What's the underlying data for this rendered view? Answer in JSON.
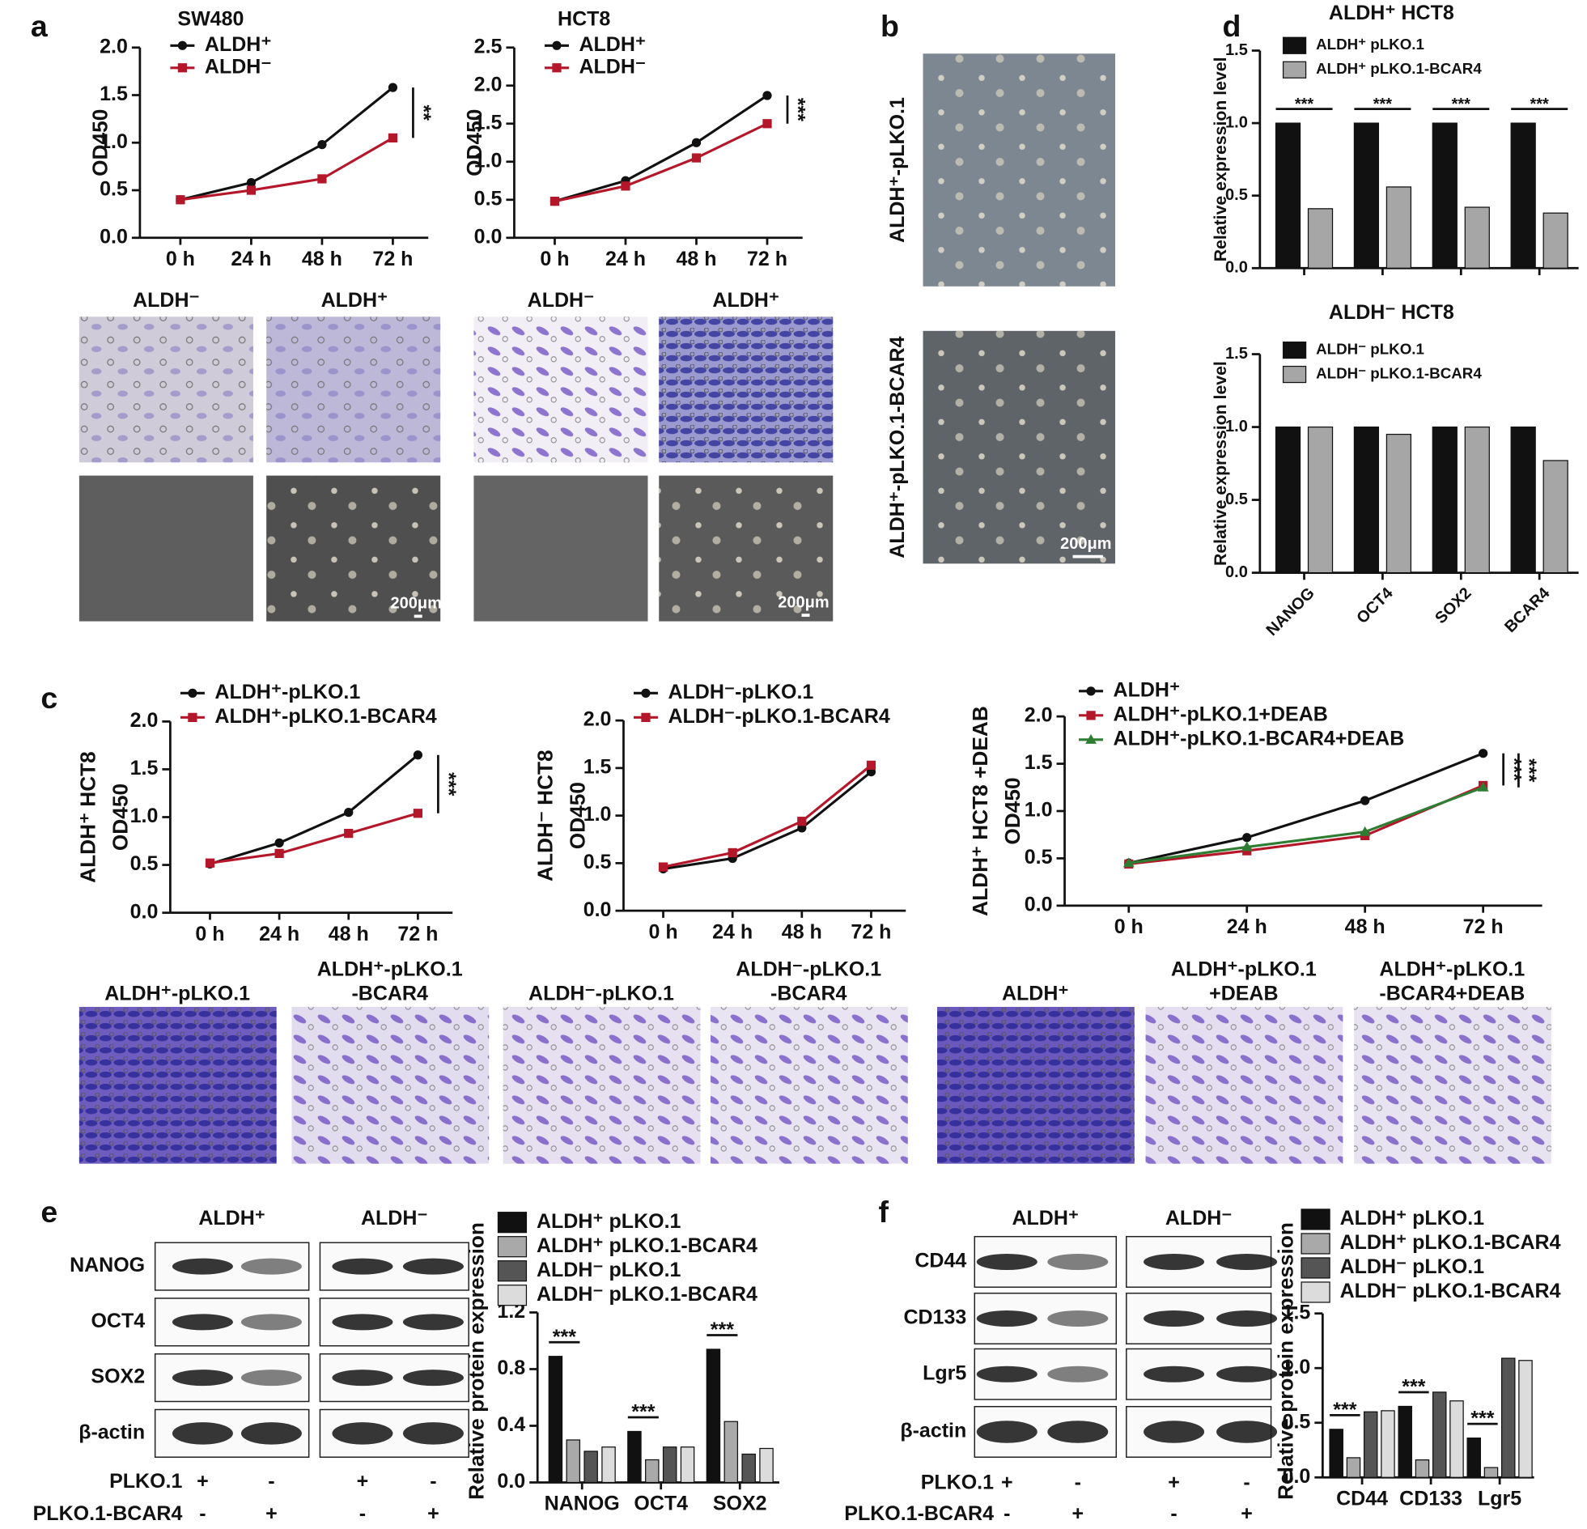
{
  "panel_labels": [
    "a",
    "b",
    "c",
    "d",
    "e",
    "f"
  ],
  "chart_data": [
    {
      "type": "line",
      "title": "SW480",
      "ylabel": "OD450",
      "categories": [
        "0 h",
        "24 h",
        "48 h",
        "72 h"
      ],
      "ylim": [
        0,
        2.0
      ],
      "yticks": [
        {
          "value": 0,
          "label": "0.0"
        },
        0.5,
        {
          "value": 1,
          "label": "1.0"
        },
        1.5,
        {
          "value": 2,
          "label": "2.0"
        }
      ],
      "series": [
        {
          "name": "ALDH⁺",
          "color": "#111111",
          "values": [
            0.4,
            0.58,
            0.98,
            1.58
          ]
        },
        {
          "name": "ALDH⁻",
          "color": "#b5172a",
          "values": [
            0.4,
            0.5,
            0.62,
            1.05
          ]
        }
      ],
      "annotations": [
        "**"
      ]
    },
    {
      "type": "line",
      "title": "HCT8",
      "ylabel": "OD450",
      "categories": [
        "0 h",
        "24 h",
        "48 h",
        "72 h"
      ],
      "ylim": [
        0,
        2.5
      ],
      "yticks": [
        {
          "value": 0,
          "label": "0.0"
        },
        0.5,
        {
          "value": 1,
          "label": "1.0"
        },
        1.5,
        {
          "value": 2,
          "label": "2.0"
        },
        2.5
      ],
      "series": [
        {
          "name": "ALDH⁺",
          "color": "#111111",
          "values": [
            0.48,
            0.75,
            1.25,
            1.87
          ]
        },
        {
          "name": "ALDH⁻",
          "color": "#b5172a",
          "values": [
            0.48,
            0.68,
            1.05,
            1.5
          ]
        }
      ],
      "annotations": [
        "***"
      ]
    },
    {
      "type": "bar",
      "title": "ALDH⁺ HCT8",
      "ylabel": "Relative expression level",
      "categories": [
        null,
        null,
        null,
        null
      ],
      "ylim": [
        0,
        1.5
      ],
      "yticks": [
        {
          "value": 0,
          "label": "0.0"
        },
        0.5,
        {
          "value": 1,
          "label": "1.0"
        },
        1.5
      ],
      "series": [
        {
          "name": "ALDH⁺ pLKO.1",
          "color": "#111111",
          "values": [
            1.0,
            1.0,
            1.0,
            1.0
          ]
        },
        {
          "name": "ALDH⁺ pLKO.1-BCAR4",
          "color": "#a6a6a6",
          "values": [
            0.41,
            0.56,
            0.42,
            0.38
          ]
        }
      ],
      "annotations": [
        "***",
        "***",
        "***",
        "***"
      ]
    },
    {
      "type": "bar",
      "title": "ALDH⁻ HCT8",
      "ylabel": "Relative expression level",
      "categories": [
        "NANOG",
        "OCT4",
        "SOX2",
        "BCAR4"
      ],
      "ylim": [
        0,
        1.5
      ],
      "yticks": [
        {
          "value": 0,
          "label": "0.0"
        },
        0.5,
        {
          "value": 1,
          "label": "1.0"
        },
        1.5
      ],
      "series": [
        {
          "name": "ALDH⁻ pLKO.1",
          "color": "#111111",
          "values": [
            1.0,
            1.0,
            1.0,
            1.0
          ]
        },
        {
          "name": "ALDH⁻ pLKO.1-BCAR4",
          "color": "#a6a6a6",
          "values": [
            1.0,
            0.95,
            1.0,
            0.77
          ]
        }
      ]
    },
    {
      "type": "line",
      "ylabel": [
        "ALDH⁺ HCT8",
        "OD450"
      ],
      "categories": [
        "0 h",
        "24 h",
        "48 h",
        "72 h"
      ],
      "ylim": [
        0,
        2.0
      ],
      "yticks": [
        {
          "value": 0,
          "label": "0.0"
        },
        0.5,
        {
          "value": 1,
          "label": "1.0"
        },
        1.5,
        {
          "value": 2,
          "label": "2.0"
        }
      ],
      "series": [
        {
          "name": "ALDH⁺-pLKO.1",
          "color": "#111111",
          "values": [
            0.51,
            0.73,
            1.05,
            1.65
          ]
        },
        {
          "name": "ALDH⁺-pLKO.1-BCAR4",
          "color": "#b5172a",
          "values": [
            0.52,
            0.62,
            0.83,
            1.04
          ]
        }
      ],
      "annotations": [
        "***"
      ]
    },
    {
      "type": "line",
      "ylabel": [
        "ALDH⁻ HCT8",
        "OD450"
      ],
      "categories": [
        "0 h",
        "24 h",
        "48 h",
        "72 h"
      ],
      "ylim": [
        0,
        2.0
      ],
      "yticks": [
        {
          "value": 0,
          "label": "0.0"
        },
        0.5,
        {
          "value": 1,
          "label": "1.0"
        },
        1.5,
        {
          "value": 2,
          "label": "2.0"
        }
      ],
      "series": [
        {
          "name": "ALDH⁻-pLKO.1",
          "color": "#111111",
          "values": [
            0.44,
            0.55,
            0.87,
            1.46
          ]
        },
        {
          "name": "ALDH⁻-pLKO.1-BCAR4",
          "color": "#b5172a",
          "values": [
            0.46,
            0.61,
            0.94,
            1.53
          ]
        }
      ]
    },
    {
      "type": "line",
      "ylabel": [
        "ALDH⁺ HCT8 +DEAB",
        "OD450"
      ],
      "categories": [
        "0 h",
        "24 h",
        "48 h",
        "72 h"
      ],
      "ylim": [
        0,
        2.0
      ],
      "yticks": [
        {
          "value": 0,
          "label": "0.0"
        },
        0.5,
        {
          "value": 1,
          "label": "1.0"
        },
        1.5,
        {
          "value": 2,
          "label": "2.0"
        }
      ],
      "series": [
        {
          "name": "ALDH⁺",
          "color": "#111111",
          "values": [
            0.45,
            0.72,
            1.11,
            1.61
          ]
        },
        {
          "name": "ALDH⁺-pLKO.1+DEAB",
          "color": "#b5172a",
          "values": [
            0.44,
            0.58,
            0.74,
            1.27
          ]
        },
        {
          "name": "ALDH⁺-pLKO.1-BCAR4+DEAB",
          "color": "#2e7d32",
          "values": [
            0.45,
            0.62,
            0.78,
            1.25
          ]
        }
      ],
      "annotations": [
        "***",
        "***"
      ]
    },
    {
      "type": "bar",
      "ylabel": "Relative protein expression",
      "categories": [
        "NANOG",
        "OCT4",
        "SOX2"
      ],
      "ylim": [
        0,
        1.2
      ],
      "yticks": [
        {
          "value": 0,
          "label": "0.0"
        },
        0.4,
        0.8,
        1.2
      ],
      "series": [
        {
          "name": "ALDH⁺ pLKO.1",
          "color": "#111111",
          "values": [
            0.89,
            0.36,
            0.94
          ]
        },
        {
          "name": "ALDH⁺ pLKO.1-BCAR4",
          "color": "#a9a9a9",
          "values": [
            0.3,
            0.16,
            0.43
          ]
        },
        {
          "name": "ALDH⁻ pLKO.1",
          "color": "#555555",
          "values": [
            0.22,
            0.25,
            0.2
          ]
        },
        {
          "name": "ALDH⁻ pLKO.1-BCAR4",
          "color": "#dcdcdc",
          "values": [
            0.25,
            0.25,
            0.24
          ]
        }
      ],
      "annotations": [
        "***",
        "***",
        "***"
      ]
    },
    {
      "type": "bar",
      "ylabel": "Relative protein expression",
      "categories": [
        "CD44",
        "CD133",
        "Lgr5"
      ],
      "ylim": [
        0,
        1.5
      ],
      "yticks": [
        {
          "value": 0,
          "label": "0.0"
        },
        0.5,
        {
          "value": 1,
          "label": "1.0"
        },
        1.5
      ],
      "series": [
        {
          "name": "ALDH⁺ pLKO.1",
          "color": "#111111",
          "values": [
            0.44,
            0.65,
            0.36
          ]
        },
        {
          "name": "ALDH⁺ pLKO.1-BCAR4",
          "color": "#a9a9a9",
          "values": [
            0.18,
            0.16,
            0.09
          ]
        },
        {
          "name": "ALDH⁻ pLKO.1",
          "color": "#555555",
          "values": [
            0.6,
            0.78,
            1.09
          ]
        },
        {
          "name": "ALDH⁻ pLKO.1-BCAR4",
          "color": "#dcdcdc",
          "values": [
            0.61,
            0.7,
            1.07
          ]
        }
      ],
      "annotations": [
        "***",
        "***",
        "***"
      ]
    }
  ],
  "micrographs": {
    "a": {
      "labels": [
        "ALDH⁻",
        "ALDH⁺",
        "ALDH⁻",
        "ALDH⁺"
      ],
      "scale_bars": [
        "200μm",
        "200μm"
      ]
    },
    "b": {
      "labels": [
        "ALDH⁺-pLKO.1",
        "ALDH⁺-pLKO.1-BCAR4"
      ],
      "scale_bar": "200μm"
    },
    "c": {
      "labels": [
        [
          "ALDH⁺-pLKO.1"
        ],
        [
          "ALDH⁺-pLKO.1",
          "-BCAR4"
        ],
        [
          "ALDH⁻-pLKO.1"
        ],
        [
          "ALDH⁻-pLKO.1",
          "-BCAR4"
        ],
        [
          "ALDH⁺"
        ],
        [
          "ALDH⁺-pLKO.1",
          "+DEAB"
        ],
        [
          "ALDH⁺-pLKO.1",
          "-BCAR4+DEAB"
        ]
      ]
    }
  },
  "blots": {
    "e": {
      "groups": [
        "ALDH⁺",
        "ALDH⁻"
      ],
      "rows": [
        "NANOG",
        "OCT4",
        "SOX2",
        "β-actin"
      ],
      "treatments": [
        {
          "name": "PLKO.1",
          "signs": [
            "+",
            "-",
            "+",
            "-"
          ]
        },
        {
          "name": "PLKO.1-BCAR4",
          "signs": [
            "-",
            "+",
            "-",
            "+"
          ]
        }
      ]
    },
    "f": {
      "groups": [
        "ALDH⁺",
        "ALDH⁻"
      ],
      "rows": [
        "CD44",
        "CD133",
        "Lgr5",
        "β-actin"
      ],
      "treatments": [
        {
          "name": "PLKO.1",
          "signs": [
            "+",
            "-",
            "+",
            "-"
          ]
        },
        {
          "name": "PLKO.1-BCAR4",
          "signs": [
            "-",
            "+",
            "-",
            "+"
          ]
        }
      ]
    }
  }
}
